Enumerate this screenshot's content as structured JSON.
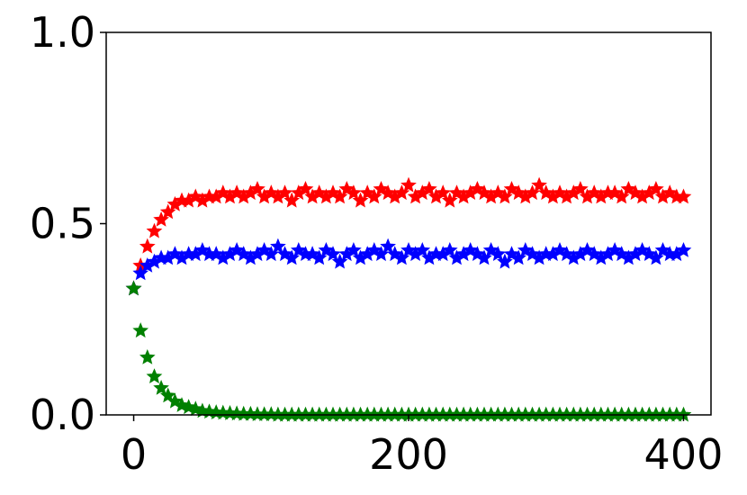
{
  "chart_data": {
    "type": "scatter",
    "marker": "star",
    "x": [
      0,
      5,
      10,
      15,
      20,
      25,
      30,
      35,
      40,
      45,
      50,
      55,
      60,
      65,
      70,
      75,
      80,
      85,
      90,
      95,
      100,
      105,
      110,
      115,
      120,
      125,
      130,
      135,
      140,
      145,
      150,
      155,
      160,
      165,
      170,
      175,
      180,
      185,
      190,
      195,
      200,
      205,
      210,
      215,
      220,
      225,
      230,
      235,
      240,
      245,
      250,
      255,
      260,
      265,
      270,
      275,
      280,
      285,
      290,
      295,
      300,
      305,
      310,
      315,
      320,
      325,
      330,
      335,
      340,
      345,
      350,
      355,
      360,
      365,
      370,
      375,
      380,
      385,
      390,
      395,
      400
    ],
    "series": [
      {
        "color": "#ff0000",
        "values": [
          0.33,
          0.39,
          0.44,
          0.48,
          0.51,
          0.53,
          0.55,
          0.56,
          0.56,
          0.57,
          0.56,
          0.57,
          0.57,
          0.58,
          0.57,
          0.58,
          0.57,
          0.58,
          0.59,
          0.57,
          0.58,
          0.57,
          0.58,
          0.56,
          0.58,
          0.59,
          0.57,
          0.58,
          0.57,
          0.58,
          0.57,
          0.59,
          0.58,
          0.56,
          0.58,
          0.57,
          0.59,
          0.58,
          0.57,
          0.58,
          0.6,
          0.57,
          0.58,
          0.59,
          0.57,
          0.58,
          0.56,
          0.58,
          0.57,
          0.58,
          0.59,
          0.58,
          0.57,
          0.58,
          0.57,
          0.59,
          0.58,
          0.57,
          0.58,
          0.6,
          0.58,
          0.57,
          0.58,
          0.57,
          0.58,
          0.59,
          0.57,
          0.58,
          0.57,
          0.58,
          0.58,
          0.57,
          0.59,
          0.58,
          0.57,
          0.58,
          0.59,
          0.57,
          0.58,
          0.57,
          0.57
        ]
      },
      {
        "color": "#0000ff",
        "values": [
          0.33,
          0.37,
          0.39,
          0.4,
          0.41,
          0.41,
          0.42,
          0.41,
          0.42,
          0.42,
          0.43,
          0.42,
          0.42,
          0.41,
          0.42,
          0.43,
          0.42,
          0.41,
          0.42,
          0.43,
          0.42,
          0.44,
          0.42,
          0.41,
          0.43,
          0.42,
          0.42,
          0.41,
          0.43,
          0.42,
          0.4,
          0.42,
          0.43,
          0.41,
          0.42,
          0.43,
          0.42,
          0.44,
          0.42,
          0.41,
          0.43,
          0.42,
          0.43,
          0.41,
          0.42,
          0.42,
          0.43,
          0.41,
          0.42,
          0.43,
          0.42,
          0.41,
          0.43,
          0.42,
          0.4,
          0.42,
          0.41,
          0.43,
          0.42,
          0.41,
          0.42,
          0.42,
          0.43,
          0.42,
          0.41,
          0.42,
          0.43,
          0.42,
          0.41,
          0.42,
          0.43,
          0.42,
          0.41,
          0.42,
          0.43,
          0.42,
          0.41,
          0.43,
          0.42,
          0.42,
          0.43
        ]
      },
      {
        "color": "#008000",
        "values": [
          0.33,
          0.22,
          0.15,
          0.1,
          0.07,
          0.05,
          0.035,
          0.025,
          0.02,
          0.015,
          0.01,
          0.008,
          0.006,
          0.005,
          0.004,
          0.003,
          0.002,
          0.002,
          0.001,
          0.001,
          0.001,
          0,
          0,
          0,
          0,
          0,
          0,
          0,
          0,
          0,
          0,
          0,
          0,
          0,
          0,
          0,
          0,
          0,
          0,
          0,
          0,
          0,
          0,
          0,
          0,
          0,
          0,
          0,
          0,
          0,
          0,
          0,
          0,
          0,
          0,
          0,
          0,
          0,
          0,
          0,
          0,
          0,
          0,
          0,
          0,
          0,
          0,
          0,
          0,
          0,
          0,
          0,
          0,
          0,
          0,
          0,
          0,
          0,
          0,
          0,
          0
        ]
      }
    ],
    "xlim": [
      -20,
      420
    ],
    "xticks": [
      0,
      200,
      400
    ],
    "ylim": [
      0,
      1
    ],
    "yticks": [
      {
        "value": 0,
        "label": "0.0"
      },
      {
        "value": 0.5,
        "label": "0.5"
      },
      {
        "value": 1,
        "label": "1.0"
      }
    ]
  }
}
